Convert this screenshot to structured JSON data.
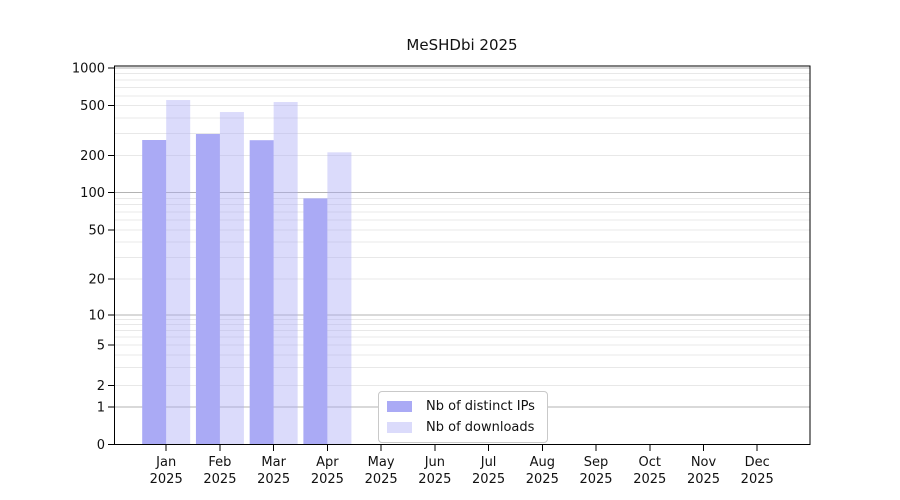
{
  "chart_data": {
    "type": "bar",
    "title": "MeSHDbi 2025",
    "categories": [
      {
        "month": "Jan",
        "year": "2025"
      },
      {
        "month": "Feb",
        "year": "2025"
      },
      {
        "month": "Mar",
        "year": "2025"
      },
      {
        "month": "Apr",
        "year": "2025"
      },
      {
        "month": "May",
        "year": "2025"
      },
      {
        "month": "Jun",
        "year": "2025"
      },
      {
        "month": "Jul",
        "year": "2025"
      },
      {
        "month": "Aug",
        "year": "2025"
      },
      {
        "month": "Sep",
        "year": "2025"
      },
      {
        "month": "Oct",
        "year": "2025"
      },
      {
        "month": "Nov",
        "year": "2025"
      },
      {
        "month": "Dec",
        "year": "2025"
      }
    ],
    "series": [
      {
        "name": "Nb of distinct IPs",
        "color": "#aaaaf5",
        "values": [
          266,
          297,
          265,
          90,
          0,
          0,
          0,
          0,
          0,
          0,
          0,
          0
        ]
      },
      {
        "name": "Nb of downloads",
        "color": "rgba(170,170,245,0.42)",
        "values": [
          555,
          445,
          535,
          212,
          0,
          0,
          0,
          0,
          0,
          0,
          0,
          0
        ]
      }
    ],
    "yaxis": {
      "scale": "log-like",
      "ylim": [
        0,
        1000
      ],
      "ticks": [
        0,
        1,
        2,
        5,
        10,
        20,
        50,
        100,
        200,
        500,
        1000
      ]
    },
    "grid": {
      "major_values": [
        1,
        10,
        100,
        1000
      ],
      "major_color": "#b3b3b3",
      "minor_color": "#e8e8e8"
    },
    "spine_color": "#000000",
    "text_color": "#111111",
    "legend_entries": [
      "Nb of distinct IPs",
      "Nb of downloads"
    ]
  }
}
